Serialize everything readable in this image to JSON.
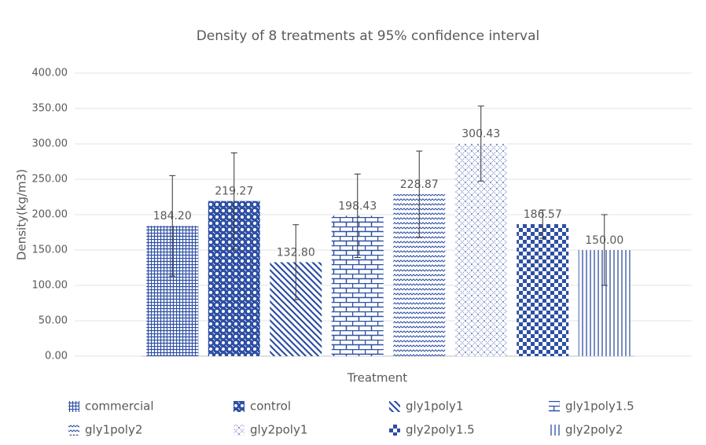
{
  "chart_data": {
    "type": "bar",
    "title": "Density of 8 treatments at 95% confidence interval",
    "x_label": "Treatment",
    "y_label": "Density(kg/m3)",
    "categories": [
      "commercial",
      "control",
      "gly1poly1",
      "gly1poly1.5",
      "gly1poly2",
      "gly2poly1",
      "gly2poly1.5",
      "gly2poly2"
    ],
    "values": [
      184.2,
      219.27,
      132.8,
      198.43,
      228.87,
      300.43,
      186.57,
      150
    ],
    "value_labels": [
      "184.20",
      "219.27",
      "132.80",
      "198.43",
      "228.87",
      "300.43",
      "186.57",
      "150.00"
    ],
    "errors": [
      71,
      68,
      53,
      59,
      61,
      53,
      20,
      50
    ],
    "color": "#2e4fa3",
    "ylim": [
      0,
      400
    ],
    "yticks": [
      {
        "value": 0,
        "label": "0.00"
      },
      {
        "value": 50,
        "label": "50.00"
      },
      {
        "value": 100,
        "label": "100.00"
      },
      {
        "value": 150,
        "label": "150.00"
      },
      {
        "value": 200,
        "label": "200.00"
      },
      {
        "value": 250,
        "label": "250.00"
      },
      {
        "value": 300,
        "label": "300.00"
      },
      {
        "value": 350,
        "label": "350.00"
      },
      {
        "value": 400,
        "label": "400.00"
      }
    ],
    "grid": true,
    "legend": "bottom"
  }
}
